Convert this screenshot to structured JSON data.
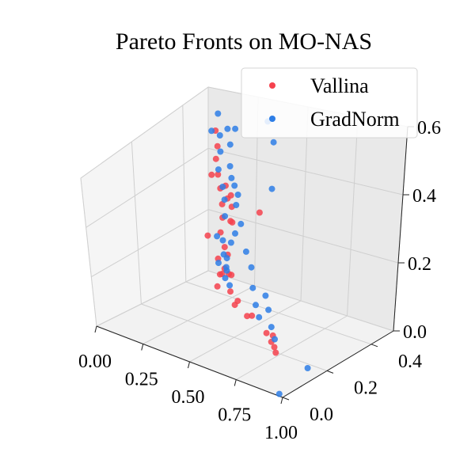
{
  "chart_data": {
    "type": "scatter",
    "title": "Pareto Fronts on MO-NAS",
    "xlabel": "",
    "ylabel": "",
    "zlabel": "",
    "xlim": [
      0,
      1
    ],
    "ylim": [
      0,
      0.5
    ],
    "zlim": [
      0,
      0.6
    ],
    "x_ticks": [
      "0.00",
      "0.25",
      "0.50",
      "0.75",
      "1.00"
    ],
    "y_ticks": [
      "0.0",
      "0.2",
      "0.4"
    ],
    "z_ticks": [
      "0.0",
      "0.2",
      "0.4",
      "0.6"
    ],
    "grid": true,
    "legend_position": "top-right",
    "series": [
      {
        "name": "Vallina",
        "color": "#f5424e",
        "points": [
          [
            0.1,
            0.45,
            0.5
          ],
          [
            0.11,
            0.45,
            0.45
          ],
          [
            0.09,
            0.46,
            0.4
          ],
          [
            0.1,
            0.46,
            0.35
          ],
          [
            0.1,
            0.47,
            0.3
          ],
          [
            0.11,
            0.47,
            0.25
          ],
          [
            0.1,
            0.48,
            0.2
          ],
          [
            0.09,
            0.48,
            0.15
          ],
          [
            0.1,
            0.49,
            0.1
          ],
          [
            0.1,
            0.49,
            0.03
          ],
          [
            0.14,
            0.46,
            0.32
          ],
          [
            0.15,
            0.46,
            0.28
          ],
          [
            0.16,
            0.47,
            0.25
          ],
          [
            0.18,
            0.45,
            0.3
          ],
          [
            0.2,
            0.44,
            0.22
          ],
          [
            0.15,
            0.42,
            0.1
          ],
          [
            0.16,
            0.42,
            0.05
          ],
          [
            0.17,
            0.4,
            0.02
          ],
          [
            0.22,
            0.38,
            0.08
          ],
          [
            0.25,
            0.38,
            0.15
          ],
          [
            0.28,
            0.36,
            0.1
          ],
          [
            0.3,
            0.35,
            0.05
          ],
          [
            0.33,
            0.33,
            0.12
          ],
          [
            0.36,
            0.32,
            0.03
          ],
          [
            0.4,
            0.3,
            0.06
          ],
          [
            0.45,
            0.3,
            0.02
          ],
          [
            0.5,
            0.28,
            0.04
          ],
          [
            0.12,
            0.4,
            0.18
          ],
          [
            0.13,
            0.41,
            0.38
          ],
          [
            0.24,
            0.4,
            0.25
          ],
          [
            0.55,
            0.27,
            0.4
          ],
          [
            0.65,
            0.22,
            0.04
          ],
          [
            0.7,
            0.2,
            0.03
          ],
          [
            0.72,
            0.19,
            0.06
          ],
          [
            0.74,
            0.18,
            0.03
          ],
          [
            0.76,
            0.17,
            0.02
          ]
        ]
      },
      {
        "name": "GradNorm",
        "color": "#2e7ee6",
        "points": [
          [
            0.1,
            0.46,
            0.55
          ],
          [
            0.11,
            0.46,
            0.48
          ],
          [
            0.1,
            0.47,
            0.42
          ],
          [
            0.09,
            0.47,
            0.36
          ],
          [
            0.1,
            0.48,
            0.3
          ],
          [
            0.11,
            0.48,
            0.26
          ],
          [
            0.1,
            0.49,
            0.2
          ],
          [
            0.09,
            0.49,
            0.12
          ],
          [
            0.1,
            0.5,
            0.06
          ],
          [
            0.1,
            0.5,
            0.02
          ],
          [
            0.15,
            0.47,
            0.38
          ],
          [
            0.17,
            0.46,
            0.35
          ],
          [
            0.2,
            0.43,
            0.48
          ],
          [
            0.2,
            0.45,
            0.52
          ],
          [
            0.22,
            0.44,
            0.28
          ],
          [
            0.24,
            0.42,
            0.2
          ],
          [
            0.18,
            0.42,
            0.12
          ],
          [
            0.2,
            0.41,
            0.05
          ],
          [
            0.23,
            0.39,
            0.1
          ],
          [
            0.26,
            0.38,
            0.05
          ],
          [
            0.28,
            0.37,
            0.2
          ],
          [
            0.31,
            0.36,
            0.4
          ],
          [
            0.34,
            0.35,
            0.38
          ],
          [
            0.38,
            0.33,
            0.3
          ],
          [
            0.42,
            0.32,
            0.22
          ],
          [
            0.46,
            0.31,
            0.18
          ],
          [
            0.48,
            0.3,
            0.12
          ],
          [
            0.52,
            0.28,
            0.08
          ],
          [
            0.55,
            0.27,
            0.05
          ],
          [
            0.62,
            0.24,
            0.15
          ],
          [
            0.66,
            0.22,
            0.12
          ],
          [
            0.7,
            0.2,
            0.08
          ],
          [
            0.73,
            0.19,
            0.05
          ],
          [
            0.3,
            0.34,
            0.6
          ],
          [
            0.45,
            0.38,
            0.62
          ],
          [
            0.55,
            0.32,
            0.45
          ],
          [
            0.12,
            0.44,
            0.16
          ],
          [
            0.14,
            0.43,
            0.08
          ],
          [
            0.97,
            0.01,
            0.0
          ],
          [
            0.92,
            0.18,
            0.0
          ],
          [
            0.4,
            0.2,
            0.7
          ],
          [
            0.58,
            0.3,
            0.62
          ]
        ]
      }
    ]
  }
}
